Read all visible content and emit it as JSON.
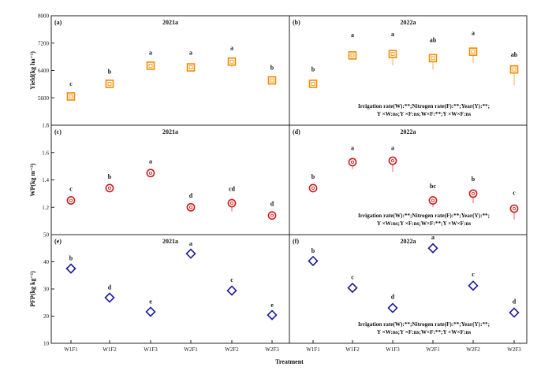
{
  "figure": {
    "xlabel": "Treatment",
    "x_tick_labels": [
      "W1F1",
      "W1F2",
      "W1F3",
      "W2F1",
      "W2F2",
      "W2F3"
    ]
  },
  "chart_data": [
    {
      "id": "a",
      "panel_label": "(a)",
      "title": "2021a",
      "type": "scatter",
      "row": "yield",
      "ylabel": "Yield(kg ha⁻¹)",
      "ylim": [
        4800,
        8000
      ],
      "y_ticks": [
        {
          "v": 5600,
          "label": "5600"
        },
        {
          "v": 6400,
          "label": "6400"
        },
        {
          "v": 7200,
          "label": "7200"
        },
        {
          "v": 8000,
          "label": "8000"
        }
      ],
      "bottom_tick_label": "1.8",
      "marker": "square",
      "color": "#f08a00",
      "x": [
        "W1F1",
        "W1F2",
        "W1F3",
        "W2F1",
        "W2F2",
        "W2F3"
      ],
      "values": [
        5640,
        6010,
        6540,
        6490,
        6660,
        6110
      ],
      "error": [
        60,
        60,
        70,
        70,
        160,
        60
      ],
      "letters": [
        "c",
        "b",
        "a",
        "a",
        "a",
        "b"
      ],
      "letter_y": [
        5950,
        6310,
        6860,
        6860,
        7000,
        6420
      ]
    },
    {
      "id": "b",
      "panel_label": "(b)",
      "title": "2022a",
      "type": "scatter",
      "row": "yield",
      "ylabel": "",
      "ylim": [
        4800,
        8000
      ],
      "marker": "square",
      "color": "#f08a00",
      "x": [
        "W1F1",
        "W1F2",
        "W1F3",
        "W2F1",
        "W2F2",
        "W2F3"
      ],
      "values": [
        6010,
        6840,
        6880,
        6760,
        6950,
        6430
      ],
      "error": [
        60,
        60,
        330,
        330,
        330,
        460
      ],
      "letters": [
        "b",
        "a",
        "a",
        "ab",
        "a",
        "ab"
      ],
      "letter_y": [
        6380,
        7380,
        7400,
        7230,
        7440,
        6800
      ],
      "stats_lines": [
        "Irrigation rate(W):**;Nitrogen rate(F):**;Year(Y):**;",
        "Y ×W:ns;Y ×F:ns;W×F:**;Y ×W×F:ns"
      ]
    },
    {
      "id": "c",
      "panel_label": "(c)",
      "title": "2021a",
      "type": "scatter",
      "row": "wp",
      "ylabel": "WP(kg m⁻³)",
      "ylim": [
        1.0,
        1.8
      ],
      "y_ticks": [
        {
          "v": 1.2,
          "label": "1.2"
        },
        {
          "v": 1.4,
          "label": "1.4"
        },
        {
          "v": 1.6,
          "label": "1.6"
        }
      ],
      "bottom_tick_label": "50",
      "marker": "circle",
      "color": "#cc1a1a",
      "x": [
        "W1F1",
        "W1F2",
        "W1F3",
        "W2F1",
        "W2F2",
        "W2F3"
      ],
      "values": [
        1.25,
        1.34,
        1.45,
        1.2,
        1.23,
        1.14
      ],
      "error": [
        0.02,
        0.01,
        0.01,
        0.01,
        0.06,
        0.01
      ],
      "letters": [
        "c",
        "b",
        "a",
        "d",
        "cd",
        "d"
      ],
      "letter_y": [
        1.32,
        1.41,
        1.52,
        1.27,
        1.32,
        1.21
      ]
    },
    {
      "id": "d",
      "panel_label": "(d)",
      "title": "2022a",
      "type": "scatter",
      "row": "wp",
      "ylabel": "",
      "ylim": [
        1.0,
        1.8
      ],
      "marker": "circle",
      "color": "#cc1a1a",
      "x": [
        "W1F1",
        "W1F2",
        "W1F3",
        "W2F1",
        "W2F2",
        "W2F3"
      ],
      "values": [
        1.34,
        1.53,
        1.54,
        1.25,
        1.3,
        1.19
      ],
      "error": [
        0.01,
        0.05,
        0.08,
        0.05,
        0.07,
        0.08
      ],
      "letters": [
        "b",
        "a",
        "a",
        "bc",
        "b",
        "c"
      ],
      "letter_y": [
        1.41,
        1.62,
        1.62,
        1.34,
        1.39,
        1.29
      ],
      "stats_lines": [
        "Irrigation rate(W):**;Nitrogen rate(F):**;Year(Y):**;",
        "Y ×W:ns;Y ×F:ns;W×F:**;Y ×W×F:ns"
      ]
    },
    {
      "id": "e",
      "panel_label": "(e)",
      "title": "2021a",
      "type": "scatter",
      "row": "pfp",
      "ylabel": "PFP(kg kg⁻¹)",
      "ylim": [
        10,
        50
      ],
      "y_ticks": [
        {
          "v": 10,
          "label": "10"
        },
        {
          "v": 20,
          "label": "20"
        },
        {
          "v": 30,
          "label": "30"
        },
        {
          "v": 40,
          "label": "40"
        }
      ],
      "marker": "diamond",
      "color": "#1a1a99",
      "x": [
        "W1F1",
        "W1F2",
        "W1F3",
        "W2F1",
        "W2F2",
        "W2F3"
      ],
      "values": [
        37.5,
        26.8,
        21.6,
        43.0,
        29.4,
        20.4
      ],
      "error": [
        0.6,
        0.4,
        0.3,
        0.5,
        0.8,
        0.3
      ],
      "letters": [
        "b",
        "d",
        "e",
        "a",
        "c",
        "e"
      ],
      "letter_y": [
        40.6,
        29.8,
        24.6,
        46.0,
        32.6,
        23.4
      ]
    },
    {
      "id": "f",
      "panel_label": "(f)",
      "title": "2022a",
      "type": "scatter",
      "row": "pfp",
      "ylabel": "",
      "ylim": [
        10,
        50
      ],
      "marker": "diamond",
      "color": "#1a1a99",
      "x": [
        "W1F1",
        "W1F2",
        "W1F3",
        "W2F1",
        "W2F2",
        "W2F3"
      ],
      "values": [
        40.3,
        30.4,
        23.0,
        45.0,
        31.2,
        21.3
      ],
      "error": [
        0.5,
        0.4,
        0.5,
        0.5,
        0.5,
        0.5
      ],
      "letters": [
        "b",
        "c",
        "d",
        "a",
        "c",
        "d"
      ],
      "letter_y": [
        43.4,
        33.6,
        26.4,
        48.3,
        34.6,
        24.6
      ],
      "stats_lines": [
        "Irrigation rate(W):**;Nitrogen rate(F):**;Year(Y):**;",
        "Y ×W:ns;Y ×F:ns;W×F:**;Y ×W×F:ns"
      ]
    }
  ]
}
